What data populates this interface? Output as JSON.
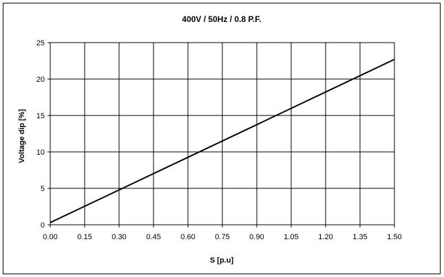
{
  "chart_data": {
    "type": "line",
    "title": "400V / 50Hz / 0.8 P.F.",
    "xlabel": "S [p.u]",
    "ylabel": "Voltage dip [%]",
    "xlim": [
      0,
      1.5
    ],
    "ylim": [
      0,
      25
    ],
    "x_ticks": [
      "0.00",
      "0.15",
      "0.30",
      "0.45",
      "0.60",
      "0.75",
      "0.90",
      "1.05",
      "1.20",
      "1.35",
      "1.50"
    ],
    "y_ticks": [
      "0",
      "5",
      "10",
      "15",
      "20",
      "25"
    ],
    "grid": true,
    "legend": "none",
    "series": [
      {
        "color": "#000000",
        "x": [
          0,
          1.5
        ],
        "y": [
          0.3,
          22.7
        ]
      }
    ]
  }
}
